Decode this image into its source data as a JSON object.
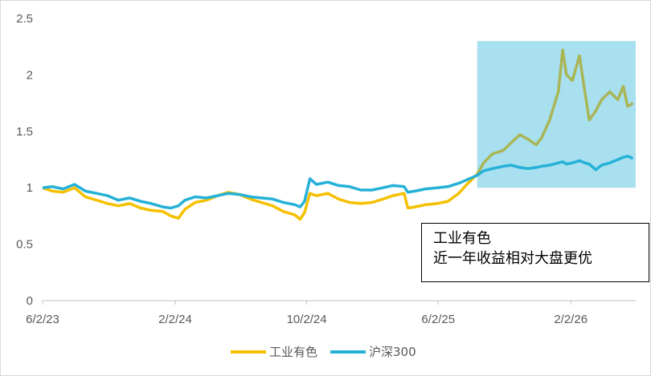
{
  "chart_data": {
    "type": "line",
    "title": "",
    "xlabel": "",
    "ylabel": "",
    "ylim": [
      0,
      2.5
    ],
    "yticks": [
      "0",
      "0.5",
      "1",
      "1.5",
      "2",
      "2.5"
    ],
    "xlim": [
      "2023-06-02",
      "2026-06-02"
    ],
    "xticks": [
      {
        "label": "6/2/23",
        "date": "2023-06-02"
      },
      {
        "label": "2/2/24",
        "date": "2024-02-02"
      },
      {
        "label": "10/2/24",
        "date": "2024-10-02"
      },
      {
        "label": "6/2/25",
        "date": "2025-06-02"
      },
      {
        "label": "2/2/26",
        "date": "2026-02-02"
      }
    ],
    "grid": false,
    "legend_position": "bottom",
    "highlight": {
      "x_start": "2025-08-13",
      "x_end": "2026-06-02",
      "y_start": 1.0,
      "y_end": 2.3,
      "color": "#a8e0f0"
    },
    "series": [
      {
        "name": "工业有色",
        "color": "#f5c000",
        "highlight_color": "#a9b556",
        "points": [
          [
            "2023-06-02",
            1.0
          ],
          [
            "2023-06-20",
            0.97
          ],
          [
            "2023-07-10",
            0.96
          ],
          [
            "2023-07-31",
            1.0
          ],
          [
            "2023-08-20",
            0.92
          ],
          [
            "2023-09-10",
            0.89
          ],
          [
            "2023-09-30",
            0.86
          ],
          [
            "2023-10-20",
            0.84
          ],
          [
            "2023-11-10",
            0.86
          ],
          [
            "2023-11-30",
            0.82
          ],
          [
            "2023-12-20",
            0.8
          ],
          [
            "2024-01-10",
            0.79
          ],
          [
            "2024-01-25",
            0.75
          ],
          [
            "2024-02-08",
            0.73
          ],
          [
            "2024-02-20",
            0.81
          ],
          [
            "2024-03-10",
            0.87
          ],
          [
            "2024-03-31",
            0.89
          ],
          [
            "2024-04-20",
            0.93
          ],
          [
            "2024-05-10",
            0.96
          ],
          [
            "2024-05-31",
            0.94
          ],
          [
            "2024-06-20",
            0.9
          ],
          [
            "2024-07-10",
            0.87
          ],
          [
            "2024-07-31",
            0.84
          ],
          [
            "2024-08-20",
            0.79
          ],
          [
            "2024-09-10",
            0.76
          ],
          [
            "2024-09-20",
            0.72
          ],
          [
            "2024-09-28",
            0.78
          ],
          [
            "2024-10-08",
            0.95
          ],
          [
            "2024-10-20",
            0.93
          ],
          [
            "2024-11-10",
            0.95
          ],
          [
            "2024-11-30",
            0.9
          ],
          [
            "2024-12-20",
            0.87
          ],
          [
            "2025-01-10",
            0.86
          ],
          [
            "2025-01-31",
            0.87
          ],
          [
            "2025-02-20",
            0.9
          ],
          [
            "2025-03-10",
            0.93
          ],
          [
            "2025-03-31",
            0.95
          ],
          [
            "2025-04-07",
            0.82
          ],
          [
            "2025-04-20",
            0.83
          ],
          [
            "2025-05-10",
            0.85
          ],
          [
            "2025-05-31",
            0.86
          ],
          [
            "2025-06-20",
            0.88
          ],
          [
            "2025-07-10",
            0.95
          ],
          [
            "2025-07-25",
            1.03
          ],
          [
            "2025-08-13",
            1.12
          ],
          [
            "2025-08-25",
            1.22
          ],
          [
            "2025-09-10",
            1.3
          ],
          [
            "2025-09-30",
            1.33
          ],
          [
            "2025-10-15",
            1.4
          ],
          [
            "2025-10-31",
            1.47
          ],
          [
            "2025-11-15",
            1.43
          ],
          [
            "2025-11-30",
            1.38
          ],
          [
            "2025-12-10",
            1.44
          ],
          [
            "2025-12-25",
            1.6
          ],
          [
            "2026-01-10",
            1.85
          ],
          [
            "2026-01-18",
            2.22
          ],
          [
            "2026-01-25",
            2.0
          ],
          [
            "2026-02-05",
            1.95
          ],
          [
            "2026-02-18",
            2.17
          ],
          [
            "2026-02-28",
            1.85
          ],
          [
            "2026-03-08",
            1.6
          ],
          [
            "2026-03-20",
            1.68
          ],
          [
            "2026-03-31",
            1.78
          ],
          [
            "2026-04-15",
            1.85
          ],
          [
            "2026-04-30",
            1.78
          ],
          [
            "2026-05-10",
            1.9
          ],
          [
            "2026-05-18",
            1.72
          ],
          [
            "2026-05-28",
            1.75
          ]
        ]
      },
      {
        "name": "沪深300",
        "color": "#25b1d6",
        "points": [
          [
            "2023-06-02",
            1.0
          ],
          [
            "2023-06-20",
            1.01
          ],
          [
            "2023-07-10",
            0.99
          ],
          [
            "2023-07-31",
            1.03
          ],
          [
            "2023-08-20",
            0.97
          ],
          [
            "2023-09-10",
            0.95
          ],
          [
            "2023-09-30",
            0.93
          ],
          [
            "2023-10-20",
            0.89
          ],
          [
            "2023-11-10",
            0.91
          ],
          [
            "2023-11-30",
            0.88
          ],
          [
            "2023-12-20",
            0.86
          ],
          [
            "2024-01-10",
            0.83
          ],
          [
            "2024-01-25",
            0.82
          ],
          [
            "2024-02-08",
            0.84
          ],
          [
            "2024-02-20",
            0.89
          ],
          [
            "2024-03-10",
            0.92
          ],
          [
            "2024-03-31",
            0.91
          ],
          [
            "2024-04-20",
            0.93
          ],
          [
            "2024-05-10",
            0.95
          ],
          [
            "2024-05-31",
            0.94
          ],
          [
            "2024-06-20",
            0.92
          ],
          [
            "2024-07-10",
            0.91
          ],
          [
            "2024-07-31",
            0.9
          ],
          [
            "2024-08-20",
            0.87
          ],
          [
            "2024-09-10",
            0.85
          ],
          [
            "2024-09-20",
            0.83
          ],
          [
            "2024-09-28",
            0.88
          ],
          [
            "2024-10-08",
            1.08
          ],
          [
            "2024-10-20",
            1.03
          ],
          [
            "2024-11-10",
            1.05
          ],
          [
            "2024-11-30",
            1.02
          ],
          [
            "2024-12-20",
            1.01
          ],
          [
            "2025-01-10",
            0.98
          ],
          [
            "2025-01-31",
            0.98
          ],
          [
            "2025-02-20",
            1.0
          ],
          [
            "2025-03-10",
            1.02
          ],
          [
            "2025-03-31",
            1.01
          ],
          [
            "2025-04-07",
            0.96
          ],
          [
            "2025-04-20",
            0.97
          ],
          [
            "2025-05-10",
            0.99
          ],
          [
            "2025-05-31",
            1.0
          ],
          [
            "2025-06-20",
            1.01
          ],
          [
            "2025-07-10",
            1.04
          ],
          [
            "2025-07-25",
            1.07
          ],
          [
            "2025-08-13",
            1.11
          ],
          [
            "2025-08-25",
            1.15
          ],
          [
            "2025-09-10",
            1.17
          ],
          [
            "2025-09-30",
            1.19
          ],
          [
            "2025-10-15",
            1.2
          ],
          [
            "2025-10-31",
            1.18
          ],
          [
            "2025-11-15",
            1.17
          ],
          [
            "2025-11-30",
            1.18
          ],
          [
            "2025-12-10",
            1.19
          ],
          [
            "2025-12-25",
            1.2
          ],
          [
            "2026-01-10",
            1.22
          ],
          [
            "2026-01-18",
            1.23
          ],
          [
            "2026-01-25",
            1.21
          ],
          [
            "2026-02-05",
            1.22
          ],
          [
            "2026-02-18",
            1.24
          ],
          [
            "2026-02-28",
            1.22
          ],
          [
            "2026-03-08",
            1.21
          ],
          [
            "2026-03-20",
            1.16
          ],
          [
            "2026-03-31",
            1.2
          ],
          [
            "2026-04-15",
            1.22
          ],
          [
            "2026-04-30",
            1.25
          ],
          [
            "2026-05-10",
            1.27
          ],
          [
            "2026-05-18",
            1.28
          ],
          [
            "2026-05-28",
            1.26
          ]
        ]
      }
    ],
    "annotation": {
      "lines": [
        "工业有色",
        "近一年收益相对大盘更优"
      ]
    }
  }
}
